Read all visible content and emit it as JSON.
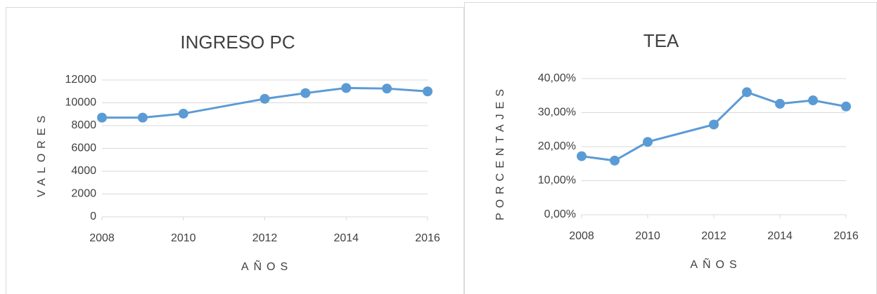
{
  "chart_data": [
    {
      "type": "line",
      "title": "INGRESO PC",
      "xlabel": "AÑOS",
      "ylabel": "VALORES",
      "x": [
        2008,
        2009,
        2010,
        2012,
        2013,
        2014,
        2015,
        2016
      ],
      "series": [
        {
          "name": "INGRESO PC",
          "color": "#5b9bd5",
          "values": [
            8700,
            8700,
            9050,
            10350,
            10850,
            11300,
            11250,
            11000
          ]
        }
      ],
      "xlim": [
        2008,
        2016
      ],
      "xticks": [
        2008,
        2010,
        2012,
        2014,
        2016
      ],
      "ylim": [
        0,
        12000
      ],
      "yticks": [
        0,
        2000,
        4000,
        6000,
        8000,
        10000,
        12000
      ],
      "grid": true
    },
    {
      "type": "line",
      "title": "TEA",
      "xlabel": "AÑOS",
      "ylabel": "PORCENTAJES",
      "x": [
        2008,
        2009,
        2010,
        2012,
        2013,
        2014,
        2015,
        2016
      ],
      "series": [
        {
          "name": "TEA",
          "color": "#5b9bd5",
          "values": [
            17.2,
            15.9,
            21.4,
            26.5,
            36.0,
            32.6,
            33.6,
            31.8
          ]
        }
      ],
      "xlim": [
        2008,
        2016
      ],
      "xticks": [
        2008,
        2010,
        2012,
        2014,
        2016
      ],
      "ylim": [
        0,
        40
      ],
      "yticks": [
        {
          "value": 0,
          "label": "0,00%"
        },
        {
          "value": 10,
          "label": "10,00%"
        },
        {
          "value": 20,
          "label": "20,00%"
        },
        {
          "value": 30,
          "label": "30,00%"
        },
        {
          "value": 40,
          "label": "40,00%"
        }
      ],
      "grid": true
    }
  ]
}
